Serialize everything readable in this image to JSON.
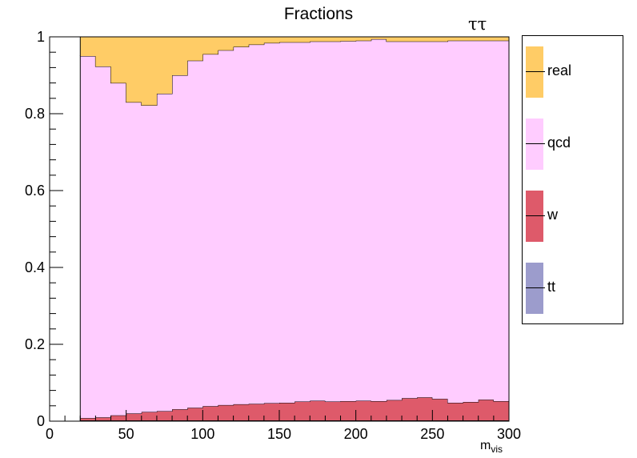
{
  "chart_data": {
    "type": "area",
    "stacked": true,
    "histogram": true,
    "title": "Fractions",
    "channel_label": "ττ",
    "xlabel": "m",
    "xlabel_sub": "vis",
    "ylabel": "",
    "xlim": [
      0,
      300
    ],
    "ylim": [
      0,
      1
    ],
    "x_ticks": [
      0,
      50,
      100,
      150,
      200,
      250,
      300
    ],
    "y_ticks": [
      0,
      0.2,
      0.4,
      0.6,
      0.8,
      1
    ],
    "y_tick_labels": [
      "0",
      "0.2",
      "0.4",
      "0.6",
      "0.8",
      "1"
    ],
    "bin_edges": [
      20,
      30,
      40,
      50,
      60,
      70,
      80,
      90,
      100,
      110,
      120,
      130,
      140,
      150,
      160,
      170,
      180,
      190,
      200,
      210,
      220,
      230,
      240,
      250,
      260,
      270,
      280,
      290,
      300
    ],
    "series": [
      {
        "name": "tt",
        "color": "#9c9ccc",
        "values": [
          0.002,
          0.002,
          0.002,
          0.002,
          0.002,
          0.002,
          0.002,
          0.002,
          0.002,
          0.002,
          0.002,
          0.002,
          0.002,
          0.002,
          0.002,
          0.002,
          0.002,
          0.002,
          0.002,
          0.002,
          0.002,
          0.002,
          0.002,
          0.002,
          0.002,
          0.002,
          0.002,
          0.002
        ]
      },
      {
        "name": "w",
        "color": "#de5a6a",
        "values": [
          0.006,
          0.008,
          0.013,
          0.018,
          0.022,
          0.024,
          0.029,
          0.033,
          0.037,
          0.04,
          0.042,
          0.043,
          0.045,
          0.046,
          0.049,
          0.051,
          0.049,
          0.05,
          0.051,
          0.05,
          0.053,
          0.058,
          0.06,
          0.056,
          0.046,
          0.048,
          0.054,
          0.05
        ]
      },
      {
        "name": "qcd",
        "color": "#ffccff",
        "values": [
          0.942,
          0.913,
          0.865,
          0.81,
          0.798,
          0.826,
          0.869,
          0.903,
          0.916,
          0.923,
          0.93,
          0.935,
          0.937,
          0.938,
          0.935,
          0.935,
          0.937,
          0.937,
          0.937,
          0.942,
          0.933,
          0.928,
          0.926,
          0.93,
          0.942,
          0.94,
          0.934,
          0.938
        ]
      },
      {
        "name": "real",
        "color": "#ffcc66",
        "values": [
          0.05,
          0.077,
          0.12,
          0.17,
          0.178,
          0.148,
          0.1,
          0.062,
          0.045,
          0.035,
          0.026,
          0.02,
          0.016,
          0.014,
          0.014,
          0.012,
          0.012,
          0.011,
          0.01,
          0.006,
          0.012,
          0.012,
          0.012,
          0.012,
          0.01,
          0.01,
          0.01,
          0.01
        ]
      }
    ],
    "legend": {
      "position": "right",
      "entries": [
        "real",
        "qcd",
        "w",
        "tt"
      ]
    },
    "grid": false
  }
}
